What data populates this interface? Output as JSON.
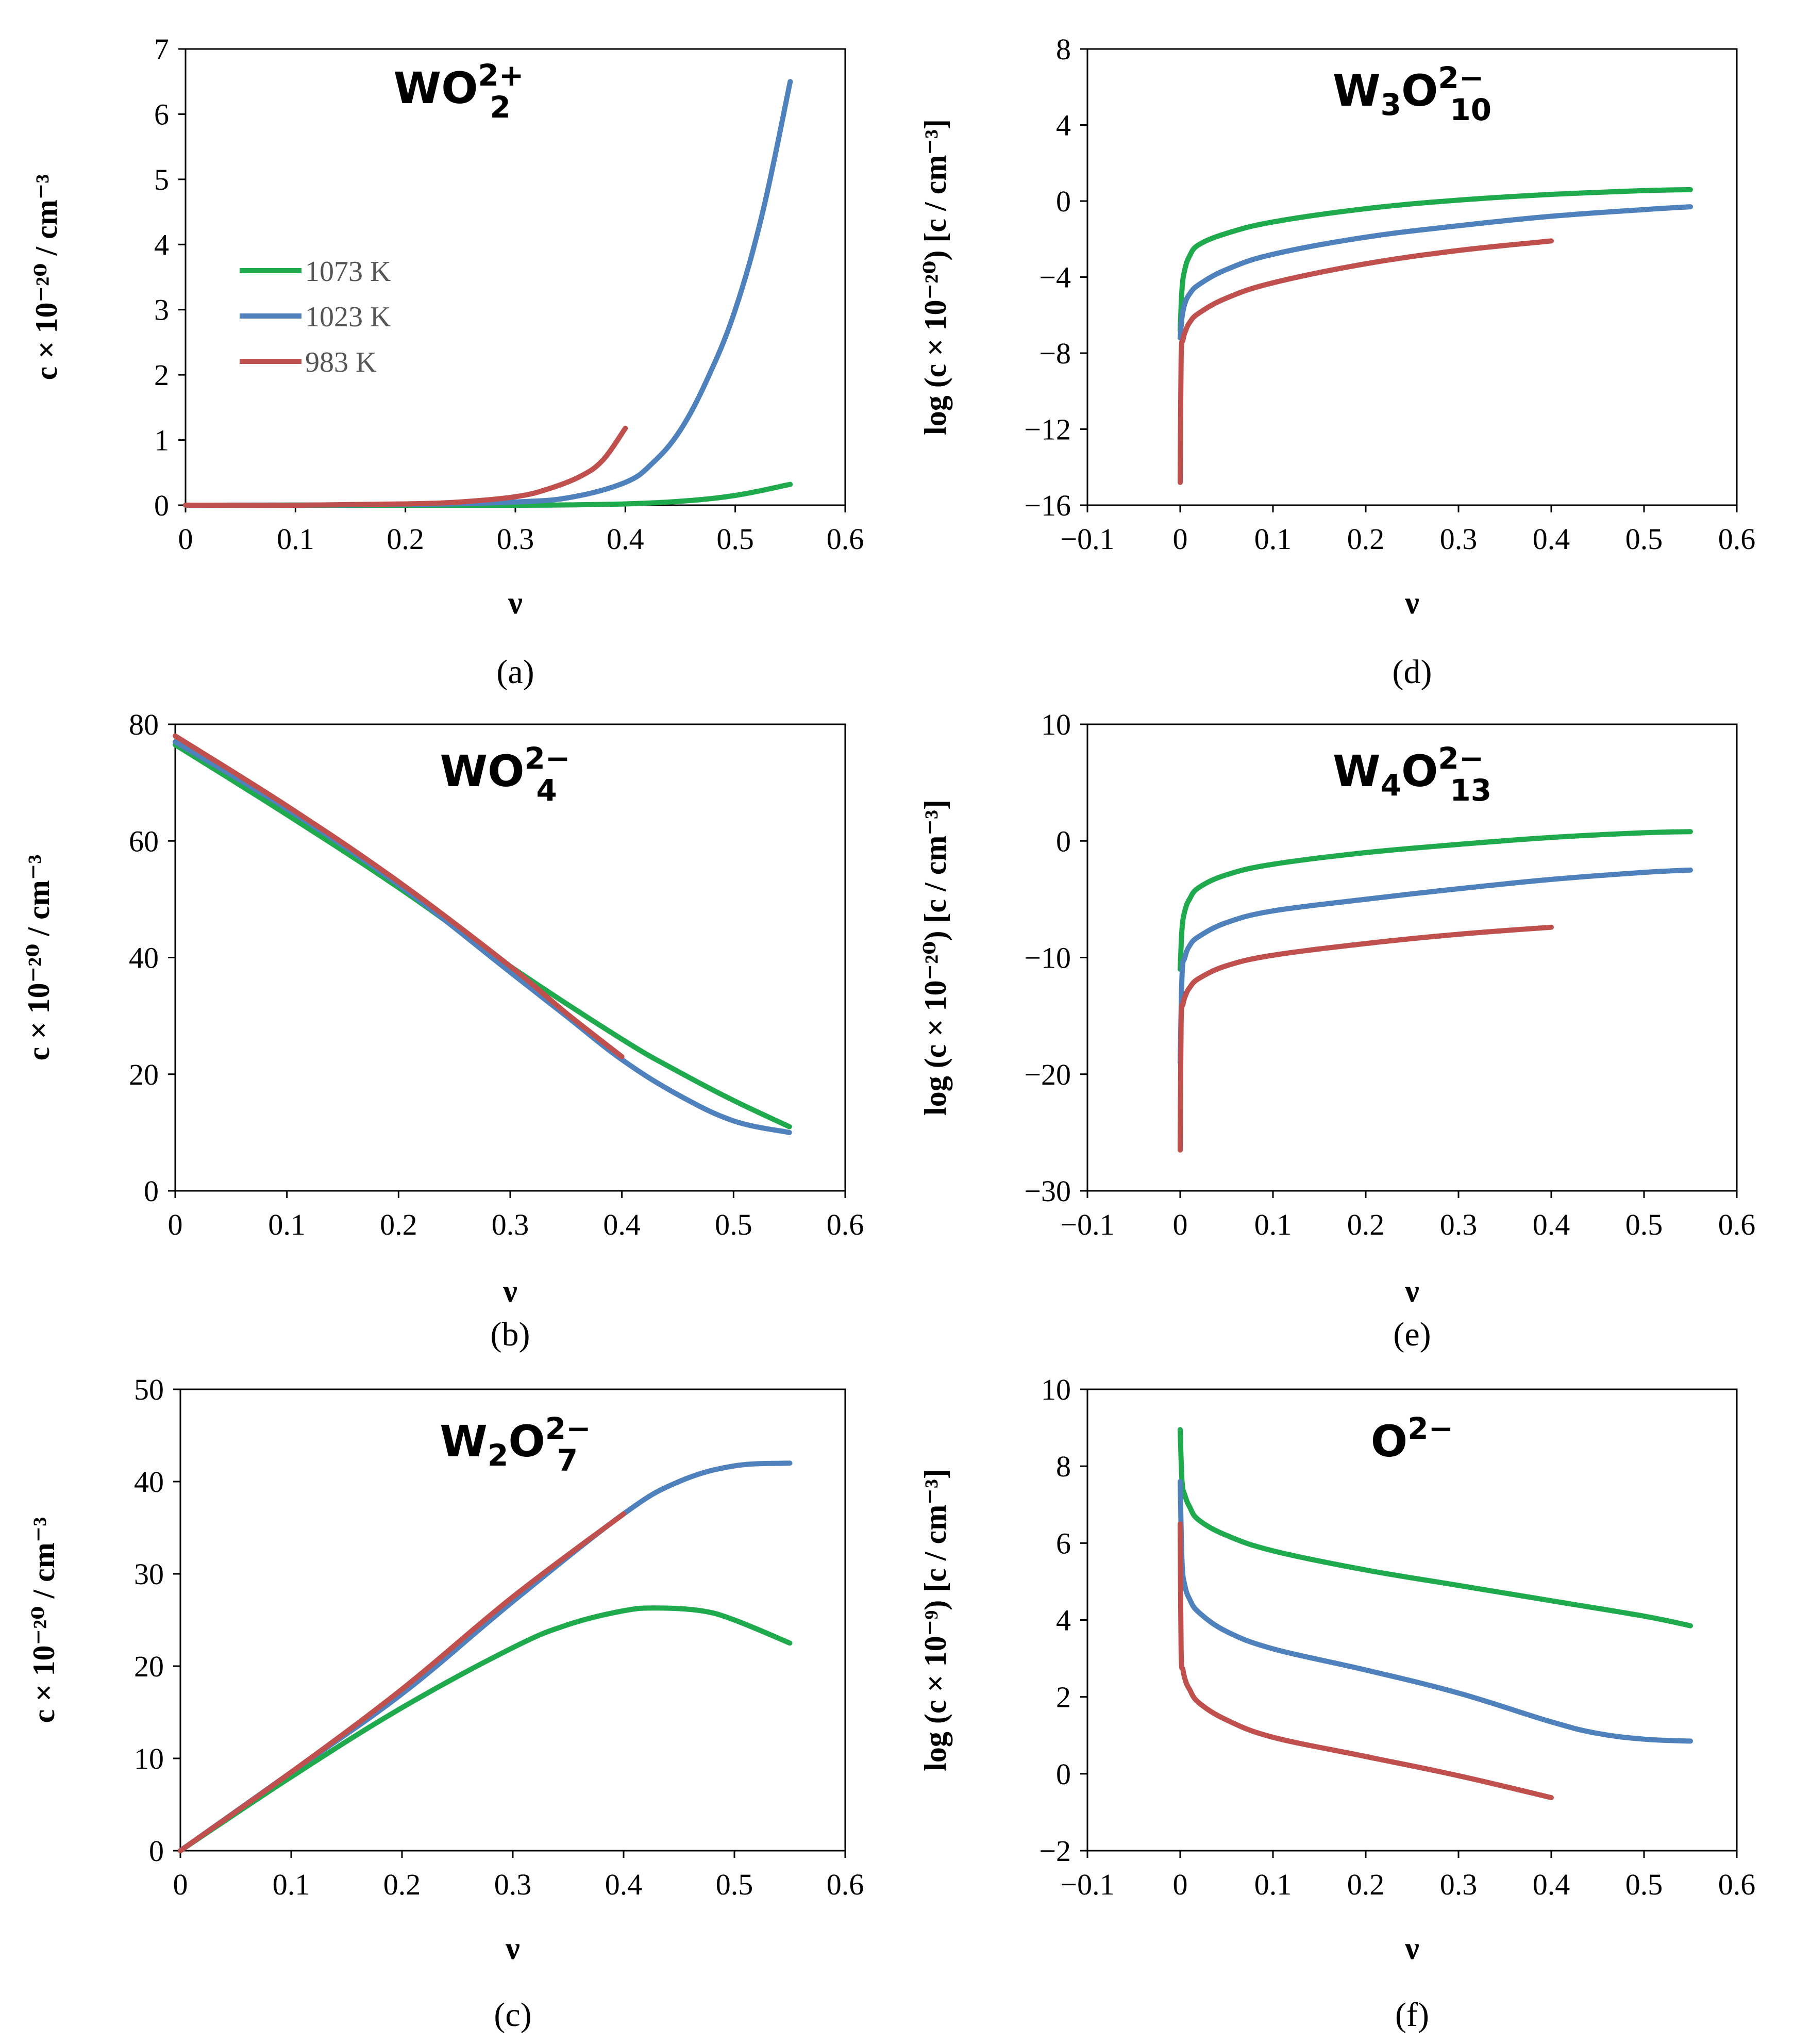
{
  "figure": {
    "colors": {
      "1073 K": "#1faa4d",
      "1023 K": "#4f81bd",
      "983 K": "#c0504d"
    },
    "legend": [
      "1073 K",
      "1023 K",
      "983 K"
    ],
    "panel_labels": [
      "(a)",
      "(b)",
      "(c)",
      "(d)",
      "(e)",
      "(f)"
    ]
  },
  "chart_data": [
    {
      "id": "a",
      "type": "line",
      "title": "WO₂²⁺",
      "title_parts": {
        "base": "WO",
        "sub": "2",
        "sup": "2+"
      },
      "xlabel": "ν",
      "ylabel": "c × 10⁻²⁰ / cm⁻³",
      "xlim": [
        0,
        0.6
      ],
      "ylim": [
        0,
        7
      ],
      "xticks": [
        0,
        0.1,
        0.2,
        0.3,
        0.4,
        0.5,
        0.6
      ],
      "yticks": [
        0,
        1,
        2,
        3,
        4,
        5,
        6,
        7
      ],
      "xtick_labels": [
        "0",
        "0.1",
        "0.2",
        "0.3",
        "0.4",
        "0.5",
        "0.6"
      ],
      "ytick_labels": [
        "0",
        "1",
        "2",
        "3",
        "4",
        "5",
        "6",
        "7"
      ],
      "legend": [
        "1073 K",
        "1023 K",
        "983 K"
      ],
      "series": [
        {
          "name": "1073 K",
          "x": [
            0,
            0.2,
            0.3,
            0.35,
            0.4,
            0.45,
            0.5,
            0.55
          ],
          "y": [
            0,
            0,
            0,
            0.005,
            0.02,
            0.06,
            0.15,
            0.32
          ]
        },
        {
          "name": "1023 K",
          "x": [
            0,
            0.2,
            0.3,
            0.35,
            0.4,
            0.425,
            0.45,
            0.475,
            0.5,
            0.525,
            0.55
          ],
          "y": [
            0,
            0.01,
            0.05,
            0.12,
            0.35,
            0.65,
            1.15,
            1.95,
            3.0,
            4.5,
            6.5
          ]
        },
        {
          "name": "983 K",
          "x": [
            0,
            0.1,
            0.2,
            0.25,
            0.3,
            0.33,
            0.36,
            0.38,
            0.4
          ],
          "y": [
            0,
            0,
            0.02,
            0.05,
            0.13,
            0.25,
            0.45,
            0.7,
            1.18
          ]
        }
      ],
      "panel_label": "(a)"
    },
    {
      "id": "b",
      "type": "line",
      "title": "WO₄²⁻",
      "title_parts": {
        "base": "WO",
        "sub": "4",
        "sup": "2−"
      },
      "xlabel": "ν",
      "ylabel": "c × 10⁻²⁰ / cm⁻³",
      "xlim": [
        0,
        0.6
      ],
      "ylim": [
        0,
        80
      ],
      "xticks": [
        0,
        0.1,
        0.2,
        0.3,
        0.4,
        0.5,
        0.6
      ],
      "yticks": [
        0,
        20,
        40,
        60,
        80
      ],
      "xtick_labels": [
        "0",
        "0.1",
        "0.2",
        "0.3",
        "0.4",
        "0.5",
        "0.6"
      ],
      "ytick_labels": [
        "0",
        "20",
        "40",
        "60",
        "80"
      ],
      "series": [
        {
          "name": "1073 K",
          "x": [
            0,
            0.1,
            0.2,
            0.3,
            0.4,
            0.45,
            0.5,
            0.55
          ],
          "y": [
            76.5,
            64.5,
            52,
            38.5,
            26,
            20.5,
            15.5,
            11
          ]
        },
        {
          "name": "1023 K",
          "x": [
            0,
            0.1,
            0.2,
            0.3,
            0.35,
            0.4,
            0.45,
            0.5,
            0.55
          ],
          "y": [
            77,
            65.5,
            52.5,
            37.5,
            30,
            22.5,
            16.5,
            12,
            10
          ]
        },
        {
          "name": "983 K",
          "x": [
            0,
            0.1,
            0.2,
            0.3,
            0.35,
            0.4
          ],
          "y": [
            78,
            66,
            53,
            38.5,
            30.5,
            23
          ]
        }
      ],
      "panel_label": "(b)"
    },
    {
      "id": "c",
      "type": "line",
      "title": "W₂O₇²⁻",
      "title_parts": {
        "base1": "W",
        "sub1": "2",
        "base2": "O",
        "sub": "7",
        "sup": "2−"
      },
      "xlabel": "ν",
      "ylabel": "c × 10⁻²⁰ / cm⁻³",
      "xlim": [
        0,
        0.6
      ],
      "ylim": [
        0,
        50
      ],
      "xticks": [
        0,
        0.1,
        0.2,
        0.3,
        0.4,
        0.5,
        0.6
      ],
      "yticks": [
        0,
        10,
        20,
        30,
        40,
        50
      ],
      "xtick_labels": [
        "0",
        "0.1",
        "0.2",
        "0.3",
        "0.4",
        "0.5",
        "0.6"
      ],
      "ytick_labels": [
        "0",
        "10",
        "20",
        "30",
        "40",
        "50"
      ],
      "series": [
        {
          "name": "1073 K",
          "x": [
            0,
            0.1,
            0.2,
            0.3,
            0.35,
            0.4,
            0.43,
            0.47,
            0.5,
            0.55
          ],
          "y": [
            0,
            8,
            15.5,
            22,
            24.5,
            26,
            26.3,
            26,
            25,
            22.5
          ]
        },
        {
          "name": "1023 K",
          "x": [
            0,
            0.1,
            0.2,
            0.3,
            0.4,
            0.45,
            0.5,
            0.55
          ],
          "y": [
            0,
            8.5,
            17,
            27,
            36.5,
            40,
            41.7,
            42
          ]
        },
        {
          "name": "983 K",
          "x": [
            0,
            0.1,
            0.2,
            0.3,
            0.4
          ],
          "y": [
            0,
            8.5,
            17.5,
            27.5,
            36.5
          ]
        }
      ],
      "panel_label": "(c)"
    },
    {
      "id": "d",
      "type": "line",
      "title": "W₃O₁₀²⁻",
      "title_parts": {
        "base1": "W",
        "sub1": "3",
        "base2": "O",
        "sub": "10",
        "sup": "2−"
      },
      "xlabel": "ν",
      "ylabel": "log (c × 10⁻²⁰) [c / cm⁻³]",
      "xlim": [
        -0.1,
        0.6
      ],
      "ylim": [
        -16,
        8
      ],
      "xticks": [
        -0.1,
        0,
        0.1,
        0.2,
        0.3,
        0.4,
        0.5,
        0.6
      ],
      "yticks": [
        -16,
        -12,
        -8,
        -4,
        0,
        4,
        8
      ],
      "xtick_labels": [
        "−0.1",
        "0",
        "0.1",
        "0.2",
        "0.3",
        "0.4",
        "0.5",
        "0.6"
      ],
      "ytick_labels": [
        "−16",
        "−12",
        "−8",
        "−4",
        "0",
        "4",
        "8"
      ],
      "series": [
        {
          "name": "1073 K",
          "x": [
            0,
            0.002,
            0.005,
            0.01,
            0.02,
            0.05,
            0.1,
            0.2,
            0.3,
            0.4,
            0.5,
            0.55
          ],
          "y": [
            -6.8,
            -4.6,
            -3.6,
            -2.9,
            -2.3,
            -1.7,
            -1.1,
            -0.4,
            0.05,
            0.35,
            0.55,
            0.6
          ]
        },
        {
          "name": "1023 K",
          "x": [
            0,
            0.002,
            0.005,
            0.01,
            0.02,
            0.05,
            0.1,
            0.2,
            0.3,
            0.4,
            0.5,
            0.55
          ],
          "y": [
            -7.2,
            -6.1,
            -5.4,
            -4.9,
            -4.4,
            -3.6,
            -2.8,
            -1.9,
            -1.3,
            -0.8,
            -0.45,
            -0.3
          ]
        },
        {
          "name": "983 K",
          "x": [
            0,
            0.001,
            0.003,
            0.006,
            0.01,
            0.02,
            0.05,
            0.1,
            0.2,
            0.3,
            0.4
          ],
          "y": [
            -14.8,
            -8.3,
            -7.3,
            -6.8,
            -6.4,
            -5.9,
            -5.1,
            -4.3,
            -3.3,
            -2.6,
            -2.1
          ]
        }
      ],
      "panel_label": "(d)"
    },
    {
      "id": "e",
      "type": "line",
      "title": "W₄O₁₃²⁻",
      "title_parts": {
        "base1": "W",
        "sub1": "4",
        "base2": "O",
        "sub": "13",
        "sup": "2−"
      },
      "xlabel": "ν",
      "ylabel": "log (c × 10⁻²⁰) [c / cm⁻³]",
      "xlim": [
        -0.1,
        0.6
      ],
      "ylim": [
        -30,
        10
      ],
      "xticks": [
        -0.1,
        0,
        0.1,
        0.2,
        0.3,
        0.4,
        0.5,
        0.6
      ],
      "yticks": [
        -30,
        -20,
        -10,
        0,
        10
      ],
      "xtick_labels": [
        "−0.1",
        "0",
        "0.1",
        "0.2",
        "0.3",
        "0.4",
        "0.5",
        "0.6"
      ],
      "ytick_labels": [
        "−30",
        "−20",
        "−10",
        "0",
        "10"
      ],
      "series": [
        {
          "name": "1073 K",
          "x": [
            0,
            0.002,
            0.005,
            0.01,
            0.02,
            0.05,
            0.1,
            0.2,
            0.3,
            0.4,
            0.5,
            0.55
          ],
          "y": [
            -11,
            -7.5,
            -6,
            -5,
            -4,
            -2.9,
            -2,
            -1,
            -0.3,
            0.3,
            0.7,
            0.8
          ]
        },
        {
          "name": "1023 K",
          "x": [
            0,
            0.002,
            0.005,
            0.01,
            0.02,
            0.05,
            0.1,
            0.2,
            0.3,
            0.4,
            0.5,
            0.55
          ],
          "y": [
            -19,
            -11.5,
            -10,
            -9,
            -8.2,
            -7,
            -6,
            -5,
            -4.1,
            -3.3,
            -2.7,
            -2.5
          ]
        },
        {
          "name": "983 K",
          "x": [
            0,
            0.001,
            0.003,
            0.006,
            0.01,
            0.02,
            0.05,
            0.1,
            0.2,
            0.3,
            0.4
          ],
          "y": [
            -26.5,
            -15.5,
            -14,
            -13.2,
            -12.6,
            -11.8,
            -10.7,
            -9.8,
            -8.8,
            -8,
            -7.4
          ]
        }
      ],
      "panel_label": "(e)"
    },
    {
      "id": "f",
      "type": "line",
      "title": "O²⁻",
      "title_parts": {
        "base": "O",
        "sup": "2−"
      },
      "xlabel": "ν",
      "ylabel": "log (c × 10⁻⁹) [c / cm⁻³]",
      "xlim": [
        -0.1,
        0.6
      ],
      "ylim": [
        -2,
        10
      ],
      "xticks": [
        -0.1,
        0,
        0.1,
        0.2,
        0.3,
        0.4,
        0.5,
        0.6
      ],
      "yticks": [
        -2,
        0,
        2,
        4,
        6,
        8,
        10
      ],
      "xtick_labels": [
        "−0.1",
        "0",
        "0.1",
        "0.2",
        "0.3",
        "0.4",
        "0.5",
        "0.6"
      ],
      "ytick_labels": [
        "−2",
        "0",
        "2",
        "4",
        "6",
        "8",
        "10"
      ],
      "series": [
        {
          "name": "1073 K",
          "x": [
            0,
            0.002,
            0.005,
            0.01,
            0.02,
            0.05,
            0.1,
            0.2,
            0.3,
            0.4,
            0.5,
            0.55
          ],
          "y": [
            8.95,
            7.6,
            7.25,
            6.95,
            6.6,
            6.2,
            5.8,
            5.3,
            4.9,
            4.5,
            4.1,
            3.85
          ]
        },
        {
          "name": "1023 K",
          "x": [
            0,
            0.002,
            0.005,
            0.01,
            0.02,
            0.05,
            0.1,
            0.2,
            0.3,
            0.4,
            0.45,
            0.5,
            0.55
          ],
          "y": [
            7.6,
            5.5,
            4.9,
            4.55,
            4.2,
            3.7,
            3.25,
            2.7,
            2.1,
            1.35,
            1.05,
            0.9,
            0.85
          ]
        },
        {
          "name": "983 K",
          "x": [
            0,
            0.001,
            0.003,
            0.006,
            0.01,
            0.02,
            0.05,
            0.1,
            0.2,
            0.3,
            0.4
          ],
          "y": [
            6.5,
            3.2,
            2.7,
            2.4,
            2.2,
            1.85,
            1.4,
            0.95,
            0.45,
            -0.05,
            -0.62
          ]
        }
      ],
      "panel_label": "(f)"
    }
  ]
}
